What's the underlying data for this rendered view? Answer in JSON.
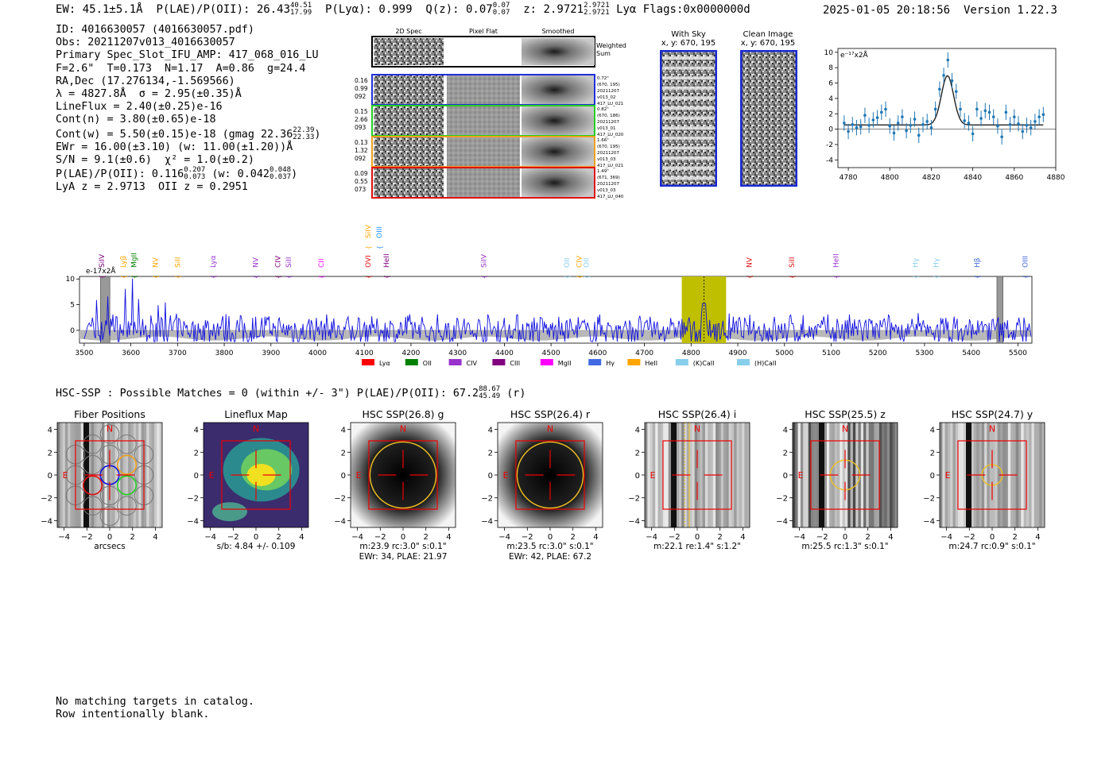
{
  "header": {
    "ew": "EW: 45.1±5.1Å",
    "ew_hi": "",
    "ew_lo": "",
    "plae_label": "P(LAE)/P(OII): 26.43",
    "plae_hi": "40.51",
    "plae_lo": "17.99",
    "plya": "P(Lyα): 0.999",
    "qz": "Q(z): 0.07",
    "qz_hi": "0.07",
    "qz_lo": "0.07",
    "z": "z: 2.9721",
    "z_hi": "2.9721",
    "z_lo": "2.9721",
    "line": "Lyα",
    "flags": "Flags:0x0000000d",
    "timestamp": "2025-01-05 20:18:56",
    "version": "Version 1.22.3"
  },
  "info": {
    "id": "ID: 4016630057 (4016630057.pdf)",
    "obs": "Obs: 20211207v013_4016630057",
    "slot": "Primary Spec_Slot_IFU_AMP: 417_068_016_LU",
    "fit": "F=2.6\"  T=0.173  N=1.17  A=0.86  g=24.4",
    "radec": "RA,Dec (17.276134,-1.569566)",
    "lambda": "λ = 4827.8Å  σ = 2.95(±0.35)Å",
    "lineflux": "LineFlux = 2.40(±0.25)e-16",
    "contn": "Cont(n) = 3.80(±0.65)e-18",
    "contw": "Cont(w) = 5.50(±0.15)e-18 (gmag 22.36",
    "contw_hi": "22.39",
    "contw_lo": "22.33",
    "ewr": "EWr = 16.00(±3.10) (w: 11.00(±1.20))Å",
    "sn": "S/N = 9.1(±0.6)  χ² = 1.0(±0.2)",
    "plae": "P(LAE)/P(OII): 0.116",
    "plae_hi": "0.207",
    "plae_lo": "0.073",
    "plae_w": "(w: 0.042",
    "plae_w_hi": "0.048",
    "plae_w_lo": "0.037",
    "lya_z": "LyA z = 2.9713  OII z = 0.2951"
  },
  "cutouts": {
    "col_headers": [
      "2D Spec",
      "Pixel Flat",
      "Smoothed"
    ],
    "weighted_sum": [
      "Weighted",
      "Sum"
    ],
    "rows": [
      {
        "left": [
          "0.16",
          "0.99",
          "092"
        ],
        "right": [
          "0.72\"",
          "(670, 195)",
          "20211207",
          "v013_02",
          "417_LU_021"
        ],
        "color": "#2030d8"
      },
      {
        "left": [
          "0.15",
          "2.66",
          "093"
        ],
        "right": [
          "0.82\"",
          "(670, 186)",
          "20211207",
          "v013_01",
          "417_LU_020"
        ],
        "color": "#22d022"
      },
      {
        "left": [
          "0.13",
          "1.32",
          "092"
        ],
        "right": [
          "1.66\"",
          "(670, 195)",
          "20211207",
          "v013_03",
          "417_LU_021"
        ],
        "color": "#f0a020"
      },
      {
        "left": [
          "0.09",
          "0.55",
          "073"
        ],
        "right": [
          "1.49\"",
          "(671, 369)",
          "20211207",
          "v013_03",
          "417_LU_040"
        ],
        "color": "#e01010"
      }
    ]
  },
  "sky": {
    "with_sky": "With Sky",
    "with_sky_xy": "x, y: 670, 195",
    "clean": "Clean Image",
    "clean_xy": "x, y: 670, 195"
  },
  "zoom_chart": {
    "ylabel": "e⁻¹⁷x2Å"
  },
  "chart_data": [
    {
      "type": "scatter",
      "title": "",
      "ylabel": "e-17x2Å",
      "xlim": [
        4775,
        4880
      ],
      "ylim": [
        -5,
        10.5
      ],
      "xticks": [
        4780,
        4800,
        4820,
        4840,
        4860,
        4880
      ],
      "yticks": [
        -4,
        -2,
        0,
        2,
        4,
        6,
        8,
        10
      ],
      "x": [
        4778,
        4780,
        4782,
        4784,
        4786,
        4788,
        4790,
        4792,
        4794,
        4796,
        4798,
        4800,
        4802,
        4804,
        4806,
        4808,
        4810,
        4812,
        4814,
        4816,
        4818,
        4820,
        4822,
        4824,
        4826,
        4828,
        4830,
        4832,
        4834,
        4836,
        4838,
        4840,
        4842,
        4844,
        4846,
        4848,
        4850,
        4852,
        4854,
        4856,
        4858,
        4860,
        4862,
        4864,
        4866,
        4868,
        4870,
        4872,
        4874
      ],
      "y": [
        0.8,
        -0.3,
        0.6,
        0.2,
        0.3,
        1.8,
        0.5,
        1.2,
        1.5,
        2.2,
        2.6,
        0.4,
        -0.5,
        0.8,
        1.6,
        -0.2,
        0.5,
        1.3,
        -0.8,
        0.6,
        1.0,
        0.2,
        2.6,
        5.2,
        7.0,
        9.0,
        6.3,
        4.9,
        2.6,
        1.1,
        0.8,
        -0.6,
        2.6,
        1.4,
        2.4,
        2.2,
        1.6,
        0.4,
        -1.0,
        2.2,
        0.6,
        1.6,
        0.7,
        -0.3,
        0.5,
        0.2,
        1.0,
        1.6,
        1.9
      ],
      "err": 1.0,
      "model": {
        "center": 4827.8,
        "sigma": 2.95,
        "amplitude": 6.4,
        "continuum": 0.55
      }
    },
    {
      "type": "line",
      "title": "",
      "ylabel": "e-17x2Å",
      "xlim": [
        3490,
        5530
      ],
      "ylim": [
        -2.5,
        10.5
      ],
      "xticks": [
        3500,
        3600,
        3700,
        3800,
        3900,
        4000,
        4100,
        4200,
        4300,
        4400,
        4500,
        4600,
        4700,
        4800,
        4900,
        5000,
        5100,
        5200,
        5300,
        5400,
        5500
      ],
      "yticks": [
        0,
        5,
        10
      ],
      "highlight_band": [
        4780,
        4875
      ],
      "marker_line": 4827.8,
      "masked_regions": [
        [
          3535,
          3555
        ],
        [
          5455,
          5468
        ]
      ],
      "line_markers": [
        {
          "label": "SiIV",
          "x": 3543,
          "color": "#800080",
          "row": 1
        },
        {
          "label": "Lyβ",
          "x": 3589,
          "color": "#ffa500",
          "row": 1
        },
        {
          "label": "MgII",
          "x": 3612,
          "color": "#008000",
          "row": 1
        },
        {
          "label": "NV",
          "x": 3658,
          "color": "#ffa500",
          "row": 1
        },
        {
          "label": "SiII",
          "x": 3705,
          "color": "#ffa500",
          "row": 1
        },
        {
          "label": "Lyα",
          "x": 3781,
          "color": "#9932cc",
          "row": 1
        },
        {
          "label": "NV",
          "x": 3872,
          "color": "#9932cc",
          "row": 1
        },
        {
          "label": "CIV",
          "x": 3920,
          "color": "#800080",
          "row": 1
        },
        {
          "label": "SiII",
          "x": 3943,
          "color": "#9932cc",
          "row": 1
        },
        {
          "label": "CII",
          "x": 4013,
          "color": "#ff00ff",
          "row": 1
        },
        {
          "label": "SiIV",
          "x": 4113,
          "color": "#ffa500",
          "row": 2
        },
        {
          "label": "OIII",
          "x": 4137,
          "color": "#1e90ff",
          "row": 2
        },
        {
          "label": "OVI",
          "x": 4113,
          "color": "#e01010",
          "row": 1
        },
        {
          "label": "HeII",
          "x": 4152,
          "color": "#800080",
          "row": 1
        },
        {
          "label": "SiIV",
          "x": 4361,
          "color": "#9932cc",
          "row": 1
        },
        {
          "label": "OII",
          "x": 4539,
          "color": "#87ceeb",
          "row": 1
        },
        {
          "label": "CIV",
          "x": 4565,
          "color": "#ffa500",
          "row": 1
        },
        {
          "label": "OII",
          "x": 4581,
          "color": "#87ceeb",
          "row": 1
        },
        {
          "label": "NV",
          "x": 4930,
          "color": "#e01010",
          "row": 1
        },
        {
          "label": "SiII",
          "x": 5021,
          "color": "#e01010",
          "row": 1
        },
        {
          "label": "HeII",
          "x": 5115,
          "color": "#9932cc",
          "row": 1
        },
        {
          "label": "Hγ",
          "x": 5286,
          "color": "#87ceeb",
          "row": 1
        },
        {
          "label": "Hγ",
          "x": 5330,
          "color": "#87ceeb",
          "row": 1
        },
        {
          "label": "Hβ",
          "x": 5418,
          "color": "#4169e1",
          "row": 1
        },
        {
          "label": "OIII",
          "x": 5521,
          "color": "#4169e1",
          "row": 1
        }
      ],
      "legend": [
        {
          "label": "Lyα",
          "color": "#ff0000"
        },
        {
          "label": "OII",
          "color": "#008000"
        },
        {
          "label": "CIV",
          "color": "#9932cc"
        },
        {
          "label": "CIII",
          "color": "#800080"
        },
        {
          "label": "MgII",
          "color": "#ff00ff"
        },
        {
          "label": "Hγ",
          "color": "#4169e1"
        },
        {
          "label": "HeII",
          "color": "#ffa500"
        },
        {
          "label": "(K)CaII",
          "color": "#87ceeb"
        },
        {
          "label": "(H)CaII",
          "color": "#87ceeb"
        }
      ]
    }
  ],
  "hsc": {
    "headline": "HSC-SSP : Possible Matches = 0 (within +/- 3\")  P(LAE)/P(OII): 67.2",
    "headline_hi": "88.67",
    "headline_lo": "45.49",
    "headline_tail": "(r)",
    "panels": [
      {
        "title": "Fiber Positions",
        "cap1": "arcsecs",
        "cap2": "",
        "kind": "fiber"
      },
      {
        "title": "Lineflux Map",
        "cap1": "s/b: 4.84 +/- 0.109",
        "cap2": "",
        "kind": "map"
      },
      {
        "title": "HSC SSP(26.8) g",
        "cap1": "m:23.9 rc:3.0\"  s:0.1\"",
        "cap2": "EWr: 34, PLAE: 21.97",
        "kind": "blob",
        "circle_r": 2.9
      },
      {
        "title": "HSC SSP(26.4) r",
        "cap1": "m:23.5 rc:3.0\"  s:0.1\"",
        "cap2": "EWr: 42, PLAE: 67.2",
        "kind": "blob",
        "circle_r": 2.9
      },
      {
        "title": "HSC SSP(26.4) i",
        "cap1": "m:22.1  re:1.4\"  s:1.2\"",
        "cap2": "",
        "kind": "stripe",
        "circle_r": 0
      },
      {
        "title": "HSC SSP(25.5) z",
        "cap1": "m:25.5 rc:1.3\"  s:0.1\"",
        "cap2": "",
        "kind": "stripe",
        "circle_r": 1.3
      },
      {
        "title": "HSC SSP(24.7) y",
        "cap1": "m:24.7 rc:0.9\"  s:0.1\"",
        "cap2": "",
        "kind": "stripe",
        "circle_r": 0.9
      }
    ],
    "ticks": [
      "−4",
      "−2",
      "0",
      "2",
      "4"
    ],
    "compass_n": "N",
    "compass_e": "E"
  },
  "footer": {
    "line1": "No matching targets in catalog.",
    "line2": "Row intentionally blank."
  }
}
